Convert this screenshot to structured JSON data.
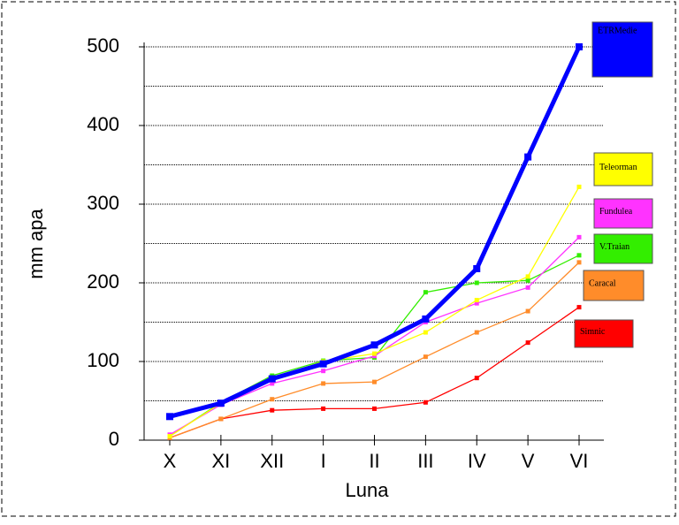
{
  "chart_data": {
    "type": "line",
    "y_label": "mm apa",
    "x_label": "Luna",
    "categories": [
      "X",
      "XI",
      "XII",
      "I",
      "II",
      "III",
      "IV",
      "V",
      "VI"
    ],
    "ylim": [
      0,
      500
    ],
    "yticks": [
      0,
      100,
      200,
      300,
      400,
      500
    ],
    "gridlines": [
      50,
      100,
      150,
      200,
      250,
      300,
      350,
      400,
      450,
      500
    ],
    "series": [
      {
        "name": "Simnic",
        "color": "#ff0000",
        "values": [
          3,
          27,
          38,
          40,
          40,
          48,
          79,
          124,
          169
        ]
      },
      {
        "name": "Caracal",
        "color": "#ff8c2a",
        "values": [
          3,
          27,
          52,
          72,
          74,
          106,
          137,
          164,
          226
        ]
      },
      {
        "name": "V.Traian",
        "color": "#33ee00",
        "values": [
          5,
          48,
          82,
          101,
          105,
          188,
          200,
          203,
          235
        ]
      },
      {
        "name": "Fundulea",
        "color": "#ff33ff",
        "values": [
          7,
          45,
          72,
          88,
          107,
          150,
          174,
          194,
          258
        ]
      },
      {
        "name": "Teleorman",
        "color": "#ffff00",
        "values": [
          5,
          47,
          78,
          100,
          110,
          137,
          178,
          208,
          322
        ]
      },
      {
        "name": "ETRMedie",
        "color": "#0000ff",
        "values": [
          30,
          47,
          78,
          97,
          121,
          154,
          218,
          360,
          500
        ]
      }
    ]
  }
}
